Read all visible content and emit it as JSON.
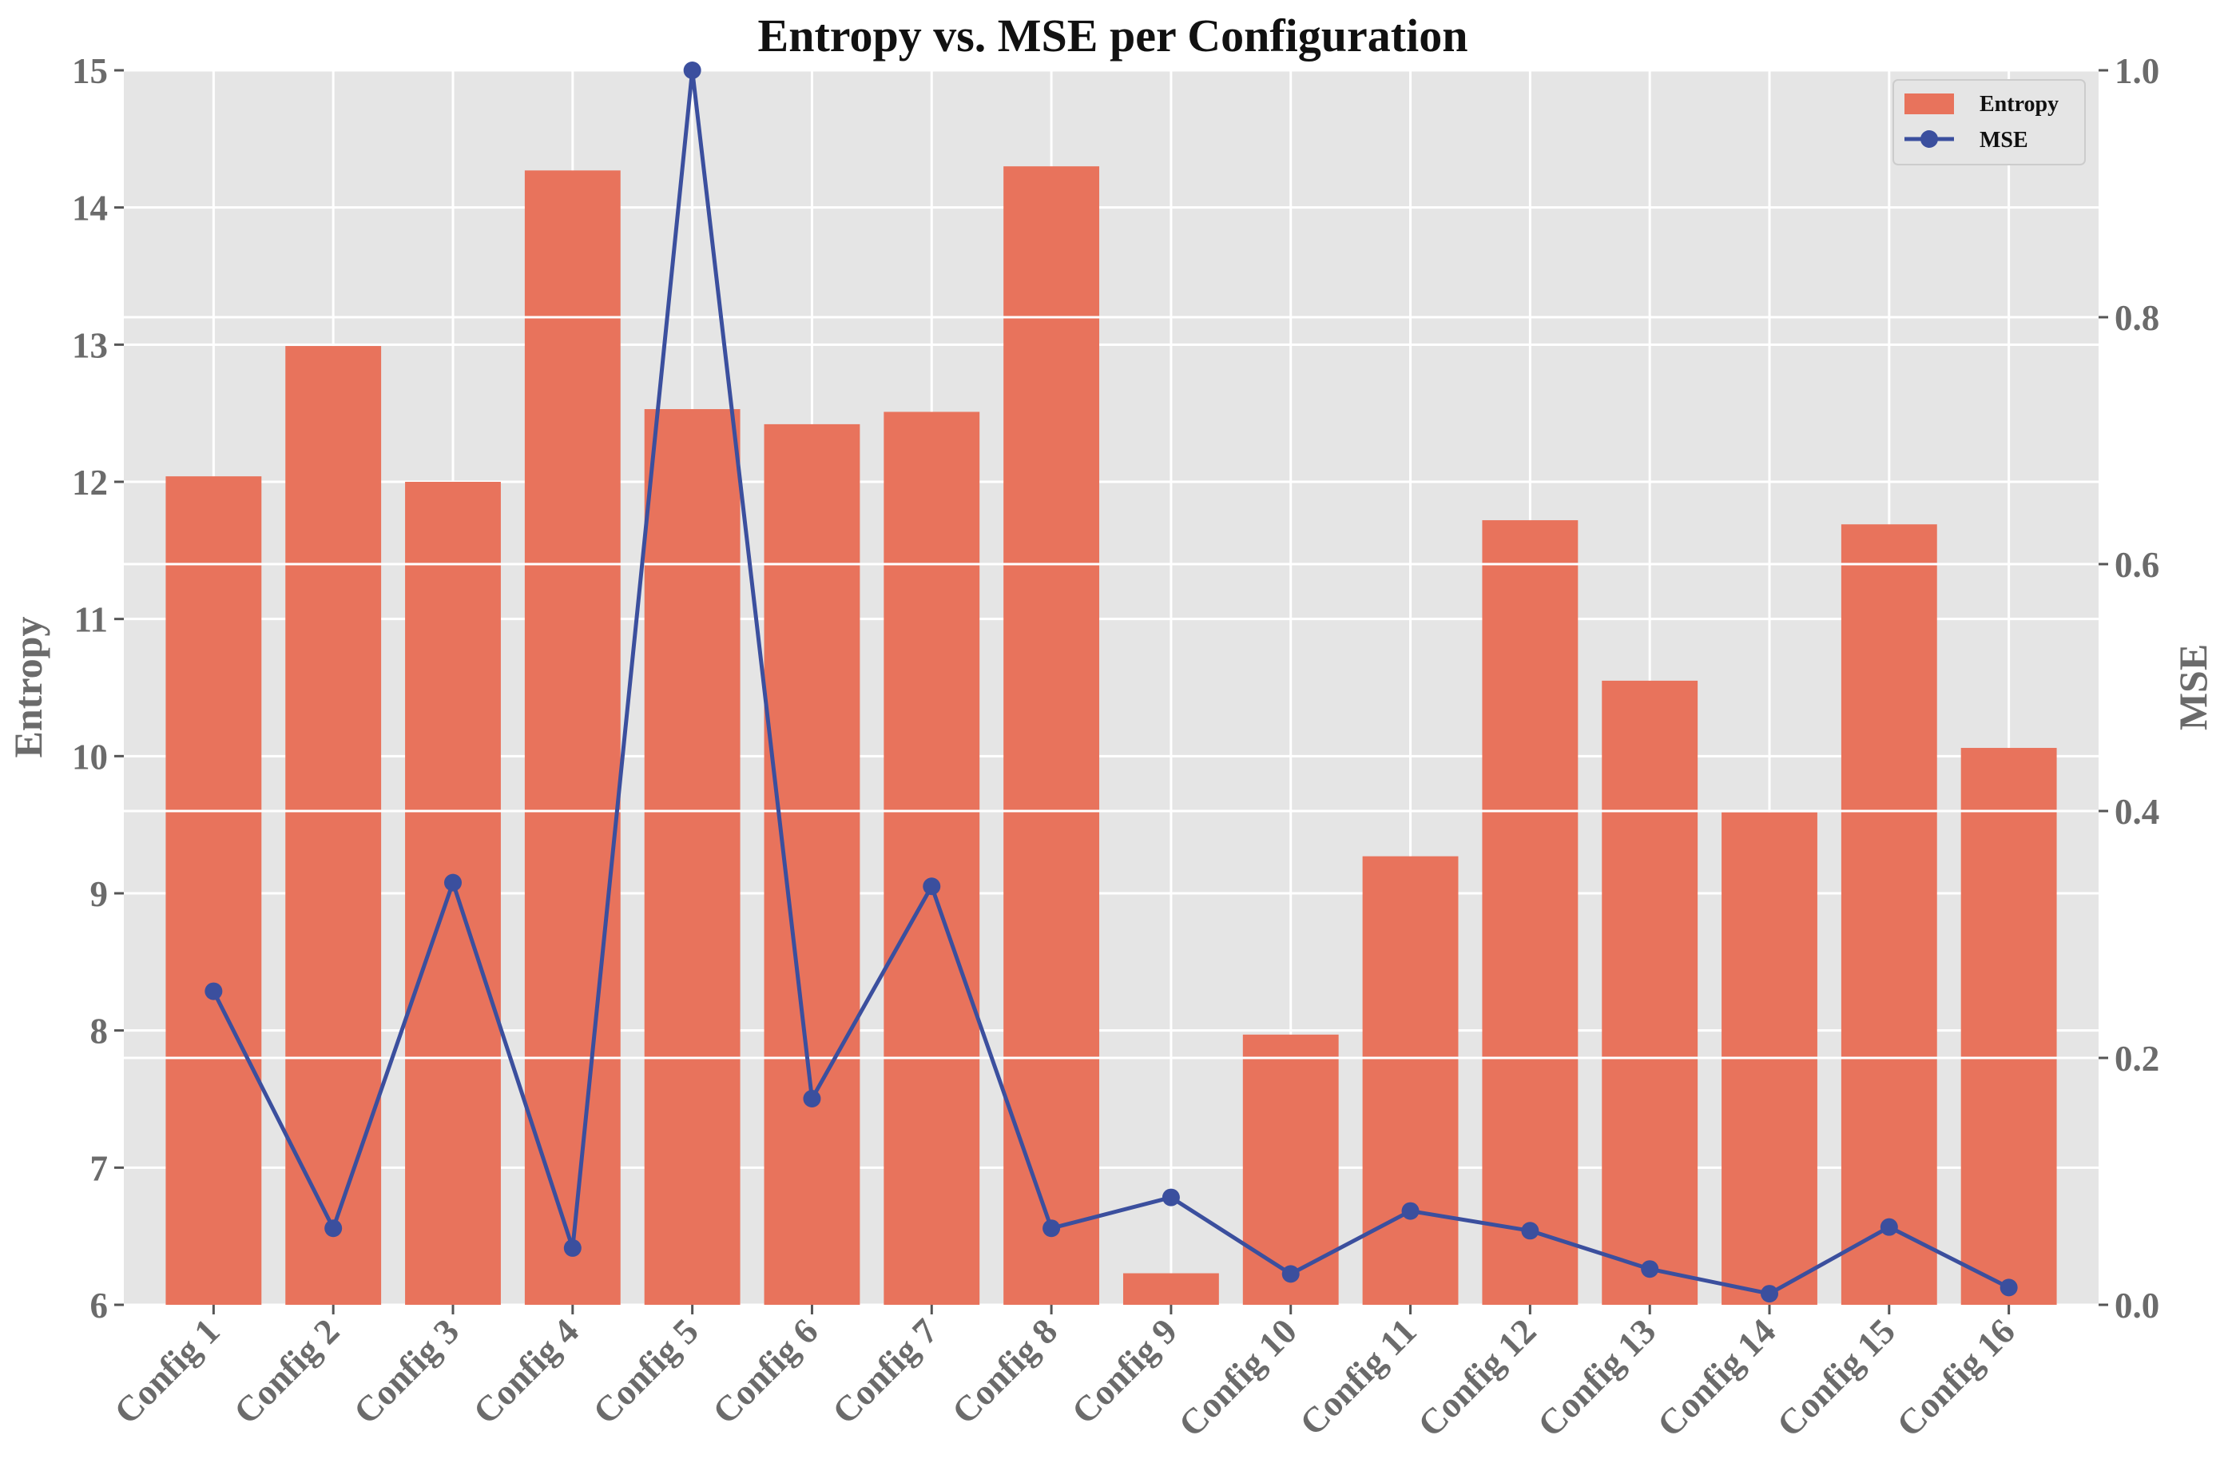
{
  "chart_data": {
    "type": "bar+line",
    "title": "Entropy vs. MSE per Configuration",
    "xlabel": "",
    "ylabel_left": "Entropy",
    "ylabel_right": "MSE",
    "categories": [
      "Config 1",
      "Config 2",
      "Config 3",
      "Config 4",
      "Config 5",
      "Config 6",
      "Config 7",
      "Config 8",
      "Config 9",
      "Config 10",
      "Config 11",
      "Config 12",
      "Config 13",
      "Config 14",
      "Config 15",
      "Config 16"
    ],
    "series": [
      {
        "name": "Entropy",
        "kind": "bar",
        "axis": "left",
        "color": "#e8735c",
        "values": [
          12.04,
          12.99,
          12.0,
          14.27,
          12.53,
          12.42,
          12.51,
          14.3,
          6.23,
          7.97,
          9.27,
          11.72,
          10.55,
          9.59,
          11.69,
          10.06
        ]
      },
      {
        "name": "MSE",
        "kind": "line",
        "axis": "right",
        "color": "#3b4f9e",
        "values": [
          0.254,
          0.062,
          0.342,
          0.046,
          1.0,
          0.167,
          0.339,
          0.062,
          0.087,
          0.025,
          0.076,
          0.06,
          0.029,
          0.009,
          0.063,
          0.014
        ]
      }
    ],
    "ylim_left": [
      6,
      15
    ],
    "yticks_left": [
      "6",
      "7",
      "8",
      "9",
      "10",
      "11",
      "12",
      "13",
      "14",
      "15"
    ],
    "ylim_right": [
      0,
      1.0
    ],
    "yticks_right": [
      "0.0",
      "0.2",
      "0.4",
      "0.6",
      "0.8",
      "1.0"
    ],
    "grid": true,
    "legend": {
      "position": "top-right",
      "entries": [
        "Entropy",
        "MSE"
      ]
    },
    "colors": {
      "background": "#e5e5e5",
      "grid": "#ffffff",
      "bar": "#e8735c",
      "line": "#3b4f9e",
      "tick_text": "#6b6b6b"
    }
  }
}
